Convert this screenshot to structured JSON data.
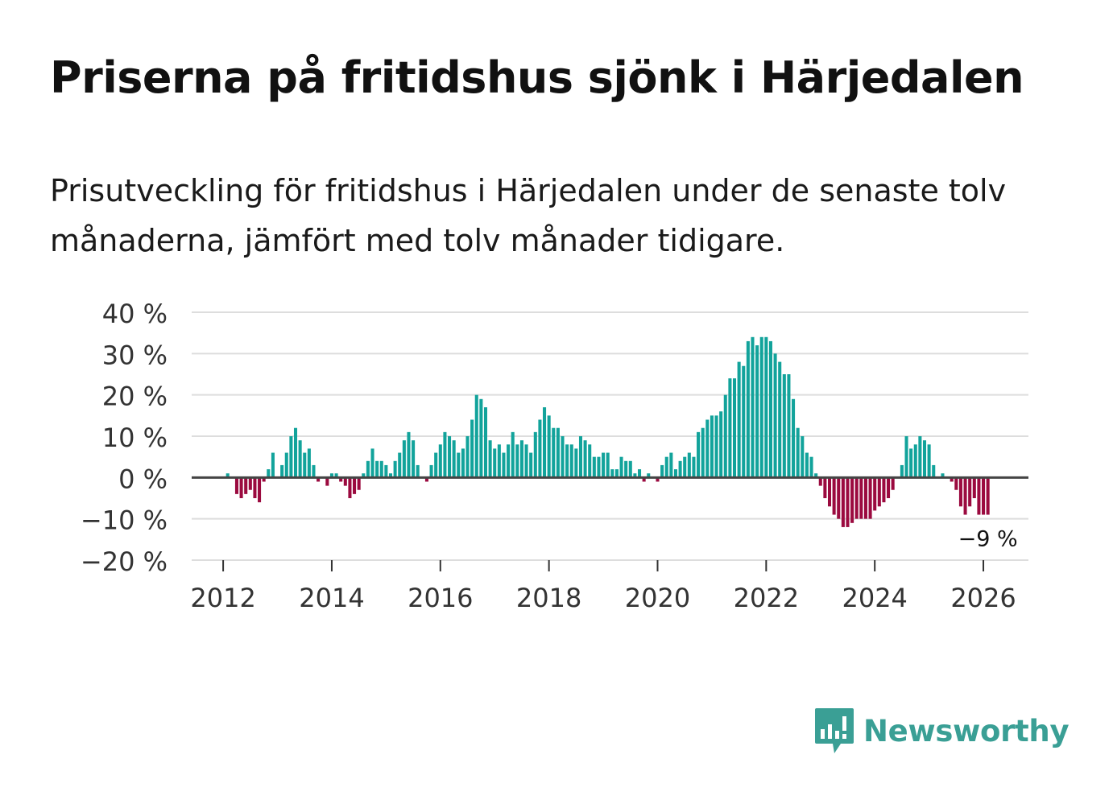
{
  "title": "Priserna på fritidshus sjönk i Härjedalen",
  "subtitle": "Prisutveckling för fritidshus i Härjedalen under de senaste tolv månaderna, jämfört med tolv månader tidigare.",
  "brand": {
    "name": "Newsworthy",
    "color": "#3a9f95",
    "icon": "bar-chart-speech-bubble-icon"
  },
  "colors": {
    "positive": "#12a39b",
    "negative": "#9b0a3f",
    "grid": "#dddddd",
    "zero": "#444444"
  },
  "chart_data": {
    "type": "bar",
    "title": "Priserna på fritidshus sjönk i Härjedalen",
    "xlabel": "",
    "ylabel": "",
    "ylim": [
      -20,
      40
    ],
    "yticks": [
      40,
      30,
      20,
      10,
      0,
      -10,
      -20
    ],
    "ytick_labels": [
      "40 %",
      "30 %",
      "20 %",
      "10 %",
      "0 %",
      "−10 %",
      "−20 %"
    ],
    "xlim": [
      2011.42,
      2026.83
    ],
    "xticks": [
      2012,
      2014,
      2016,
      2018,
      2020,
      2022,
      2024,
      2026
    ],
    "xtick_labels": [
      "2012",
      "2014",
      "2016",
      "2018",
      "2020",
      "2022",
      "2024",
      "2026"
    ],
    "grid": true,
    "start": {
      "year": 2011,
      "month": 11
    },
    "values": [
      0,
      0,
      0,
      1,
      0,
      -4,
      -5,
      -4,
      -3,
      -5,
      -6,
      -1,
      2,
      6,
      0,
      3,
      6,
      10,
      12,
      9,
      6,
      7,
      3,
      -1,
      0,
      -2,
      1,
      1,
      -1,
      -2,
      -5,
      -4,
      -3,
      1,
      4,
      7,
      4,
      4,
      3,
      1,
      4,
      6,
      9,
      11,
      9,
      3,
      0,
      -1,
      3,
      6,
      8,
      11,
      10,
      9,
      6,
      7,
      10,
      14,
      20,
      19,
      17,
      9,
      7,
      8,
      6,
      8,
      11,
      8,
      9,
      8,
      6,
      11,
      14,
      17,
      15,
      12,
      12,
      10,
      8,
      8,
      7,
      10,
      9,
      8,
      5,
      5,
      6,
      6,
      2,
      2,
      5,
      4,
      4,
      1,
      2,
      -1,
      1,
      0,
      -1,
      3,
      5,
      6,
      2,
      4,
      5,
      6,
      5,
      11,
      12,
      14,
      15,
      15,
      16,
      20,
      24,
      24,
      28,
      27,
      33,
      34,
      32,
      34,
      34,
      33,
      30,
      28,
      25,
      25,
      19,
      12,
      10,
      6,
      5,
      1,
      -2,
      -5,
      -7,
      -9,
      -10,
      -12,
      -12,
      -11,
      -10,
      -10,
      -10,
      -10,
      -8,
      -7,
      -6,
      -5,
      -3,
      0,
      3,
      10,
      7,
      8,
      10,
      9,
      8,
      3,
      0,
      1,
      0,
      -1,
      -3,
      -7,
      -9,
      -7,
      -5,
      -9,
      -9,
      -9
    ],
    "last_label": "−9 %"
  }
}
